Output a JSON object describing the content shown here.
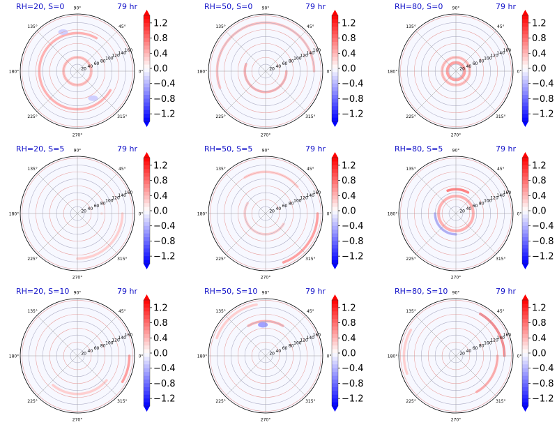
{
  "figure": {
    "colors": {
      "negative": "#0000ff",
      "positive": "#ff0000",
      "neutral": "#ffffff",
      "title_text": "#1010c8",
      "grid": "#999999"
    }
  },
  "chart_data": [
    {
      "type": "heatmap",
      "projection": "polar",
      "title": "RH=20, S=0",
      "time_label": "79 hr",
      "theta_ticks": [
        "0°",
        "45°",
        "90°",
        "135°",
        "180°",
        "225°",
        "270°",
        "315°"
      ],
      "r_ticks": [
        "20",
        "40",
        "60",
        "80",
        "100",
        "120",
        "140",
        "160"
      ],
      "colorbar": {
        "ticks": [
          "1.2",
          "0.8",
          "0.4",
          "0.0",
          "−0.4",
          "−0.8",
          "−1.2"
        ],
        "range": [
          -1.4,
          1.4
        ],
        "extend": "both",
        "cmap": "bwr"
      },
      "features": [
        {
          "kind": "ring",
          "r": 40,
          "value": 0.4
        },
        {
          "kind": "arc",
          "r": 110,
          "from": 60,
          "to": 330,
          "value": 0.5
        },
        {
          "kind": "blob",
          "r": 120,
          "theta": 110,
          "value": -0.3
        },
        {
          "kind": "blob",
          "r": 90,
          "theta": 300,
          "value": -0.3
        }
      ]
    },
    {
      "type": "heatmap",
      "projection": "polar",
      "title": "RH=50, S=0",
      "time_label": "79 hr",
      "theta_ticks": [
        "0°",
        "45°",
        "90°",
        "135°",
        "180°",
        "225°",
        "270°",
        "315°"
      ],
      "r_ticks": [
        "20",
        "40",
        "60",
        "80",
        "100",
        "120",
        "140",
        "160"
      ],
      "colorbar": {
        "ticks": [
          "1.2",
          "0.8",
          "0.4",
          "0.0",
          "−0.4",
          "−0.8",
          "−1.2"
        ],
        "range": [
          -1.4,
          1.4
        ],
        "extend": "both",
        "cmap": "bwr"
      },
      "features": [
        {
          "kind": "arc",
          "r": 60,
          "from": 160,
          "to": 360,
          "value": 0.5
        },
        {
          "kind": "arc",
          "r": 140,
          "from": 0,
          "to": 200,
          "value": 0.4
        }
      ]
    },
    {
      "type": "heatmap",
      "projection": "polar",
      "title": "RH=80, S=0",
      "time_label": "79 hr",
      "theta_ticks": [
        "0°",
        "45°",
        "90°",
        "135°",
        "180°",
        "225°",
        "270°",
        "315°"
      ],
      "r_ticks": [
        "20",
        "40",
        "60",
        "80",
        "100",
        "120",
        "140",
        "160"
      ],
      "colorbar": {
        "ticks": [
          "1.2",
          "0.8",
          "0.4",
          "0.0",
          "−0.4",
          "−0.8",
          "−1.2"
        ],
        "range": [
          -1.4,
          1.4
        ],
        "extend": "both",
        "cmap": "bwr"
      },
      "features": [
        {
          "kind": "ring",
          "r": 25,
          "value": 0.6
        },
        {
          "kind": "ring",
          "r": 40,
          "value": 0.4
        }
      ]
    },
    {
      "type": "heatmap",
      "projection": "polar",
      "title": "RH=20, S=5",
      "time_label": "79 hr",
      "theta_ticks": [
        "0°",
        "45°",
        "90°",
        "135°",
        "180°",
        "225°",
        "270°",
        "315°"
      ],
      "r_ticks": [
        "20",
        "40",
        "60",
        "80",
        "100",
        "120",
        "140",
        "160"
      ],
      "colorbar": {
        "ticks": [
          "1.2",
          "0.8",
          "0.4",
          "0.0",
          "−0.4",
          "−0.8",
          "−1.2"
        ],
        "range": [
          -1.4,
          1.4
        ],
        "extend": "both",
        "cmap": "bwr"
      },
      "features": [
        {
          "kind": "arc",
          "r": 70,
          "from": 0,
          "to": 360,
          "value": 0.2
        },
        {
          "kind": "arc",
          "r": 130,
          "from": 270,
          "to": 360,
          "value": 0.3
        }
      ]
    },
    {
      "type": "heatmap",
      "projection": "polar",
      "title": "RH=50, S=5",
      "time_label": "79 hr",
      "theta_ticks": [
        "0°",
        "45°",
        "90°",
        "135°",
        "180°",
        "225°",
        "270°",
        "315°"
      ],
      "r_ticks": [
        "20",
        "40",
        "60",
        "80",
        "100",
        "120",
        "140",
        "160"
      ],
      "colorbar": {
        "ticks": [
          "1.2",
          "0.8",
          "0.4",
          "0.0",
          "−0.4",
          "−0.8",
          "−1.2"
        ],
        "range": [
          -1.4,
          1.4
        ],
        "extend": "both",
        "cmap": "bwr"
      },
      "features": [
        {
          "kind": "arc",
          "r": 150,
          "from": 290,
          "to": 360,
          "value": 0.6
        },
        {
          "kind": "arc",
          "r": 120,
          "from": 40,
          "to": 120,
          "value": 0.3
        },
        {
          "kind": "arc",
          "r": 60,
          "from": 150,
          "to": 330,
          "value": 0.3
        }
      ]
    },
    {
      "type": "heatmap",
      "projection": "polar",
      "title": "RH=80, S=5",
      "time_label": "79 hr",
      "theta_ticks": [
        "0°",
        "45°",
        "90°",
        "135°",
        "180°",
        "225°",
        "270°",
        "315°"
      ],
      "r_ticks": [
        "20",
        "40",
        "60",
        "80",
        "100",
        "120",
        "140",
        "160"
      ],
      "colorbar": {
        "ticks": [
          "1.2",
          "0.8",
          "0.4",
          "0.0",
          "−0.4",
          "−0.8",
          "−1.2"
        ],
        "range": [
          -1.4,
          1.4
        ],
        "extend": "both",
        "cmap": "bwr"
      },
      "features": [
        {
          "kind": "ring",
          "r": 50,
          "value": 0.5
        },
        {
          "kind": "arc",
          "r": 60,
          "from": 180,
          "to": 270,
          "value": -0.5
        },
        {
          "kind": "arc",
          "r": 70,
          "from": 60,
          "to": 110,
          "value": 0.8
        }
      ]
    },
    {
      "type": "heatmap",
      "projection": "polar",
      "title": "RH=20, S=10",
      "time_label": "79 hr",
      "theta_ticks": [
        "0°",
        "45°",
        "90°",
        "135°",
        "180°",
        "225°",
        "270°",
        "315°"
      ],
      "r_ticks": [
        "20",
        "40",
        "60",
        "80",
        "100",
        "120",
        "140",
        "160"
      ],
      "colorbar": {
        "ticks": [
          "1.2",
          "0.8",
          "0.4",
          "0.0",
          "−0.4",
          "−0.8",
          "−1.2"
        ],
        "range": [
          -1.4,
          1.4
        ],
        "extend": "both",
        "cmap": "bwr"
      },
      "features": [
        {
          "kind": "arc",
          "r": 150,
          "from": 330,
          "to": 360,
          "value": 0.6
        },
        {
          "kind": "arc",
          "r": 110,
          "from": 230,
          "to": 320,
          "value": 0.3
        }
      ]
    },
    {
      "type": "heatmap",
      "projection": "polar",
      "title": "RH=50, S=10",
      "time_label": "79 hr",
      "theta_ticks": [
        "0°",
        "45°",
        "90°",
        "135°",
        "180°",
        "225°",
        "270°",
        "315°"
      ],
      "r_ticks": [
        "20",
        "40",
        "60",
        "80",
        "100",
        "120",
        "140",
        "160"
      ],
      "colorbar": {
        "ticks": [
          "1.2",
          "0.8",
          "0.4",
          "0.0",
          "−0.4",
          "−0.8",
          "−1.2"
        ],
        "range": [
          -1.4,
          1.4
        ],
        "extend": "both",
        "cmap": "bwr"
      },
      "features": [
        {
          "kind": "arc",
          "r": 100,
          "from": 60,
          "to": 120,
          "value": 0.5
        },
        {
          "kind": "blob",
          "r": 90,
          "theta": 95,
          "value": -0.6
        },
        {
          "kind": "arc",
          "r": 150,
          "from": 100,
          "to": 160,
          "value": 0.3
        }
      ]
    },
    {
      "type": "heatmap",
      "projection": "polar",
      "title": "RH=80, S=10",
      "time_label": "79 hr",
      "theta_ticks": [
        "0°",
        "45°",
        "90°",
        "135°",
        "180°",
        "225°",
        "270°",
        "315°"
      ],
      "r_ticks": [
        "20",
        "40",
        "60",
        "80",
        "100",
        "120",
        "140",
        "160"
      ],
      "colorbar": {
        "ticks": [
          "1.2",
          "0.8",
          "0.4",
          "0.0",
          "−0.4",
          "−0.8",
          "−1.2"
        ],
        "range": [
          -1.4,
          1.4
        ],
        "extend": "both",
        "cmap": "bwr"
      },
      "features": [
        {
          "kind": "arc",
          "r": 140,
          "from": 0,
          "to": 60,
          "value": 0.8
        },
        {
          "kind": "arc",
          "r": 120,
          "from": 300,
          "to": 360,
          "value": 0.5
        },
        {
          "kind": "arc",
          "r": 150,
          "from": 150,
          "to": 200,
          "value": 0.3
        }
      ]
    }
  ]
}
